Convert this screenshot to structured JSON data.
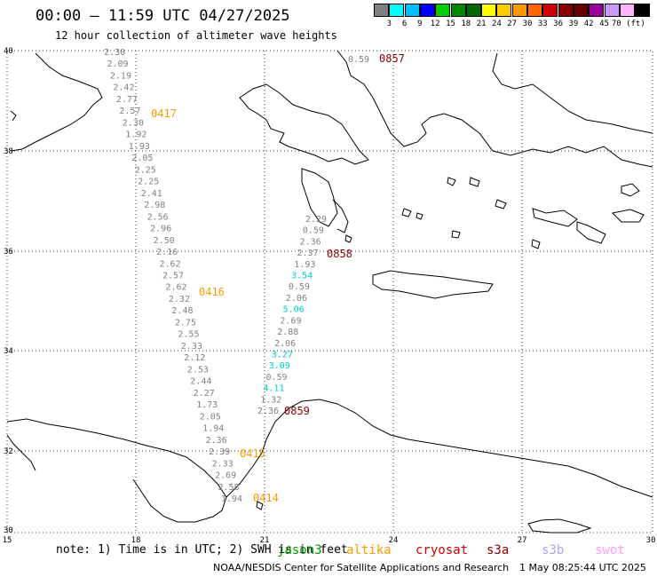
{
  "header": {
    "title": "00:00 – 11:59 UTC 04/27/2025",
    "subtitle": "12 hour collection of altimeter wave heights"
  },
  "colorbar": {
    "boxes": [
      "#808080",
      "#00ffff",
      "#00bfff",
      "#0000ff",
      "#00cc00",
      "#008800",
      "#006600",
      "#ffff00",
      "#ffcc00",
      "#ff9900",
      "#ff6600",
      "#cc0000",
      "#880000",
      "#660000",
      "#990099",
      "#cc99ff",
      "#ffb3ff",
      "#000000"
    ],
    "labels": [
      "3",
      "6",
      "9",
      "12",
      "15",
      "18",
      "21",
      "24",
      "27",
      "30",
      "33",
      "36",
      "39",
      "42",
      "45",
      "70 (ft)"
    ]
  },
  "axes": {
    "lat_labels": [
      "40",
      "38",
      "36",
      "34",
      "32",
      "30"
    ],
    "lon_labels": [
      "15",
      "18",
      "21",
      "24",
      "27",
      "30"
    ]
  },
  "passes": [
    {
      "label": "0857",
      "color": "#880000"
    },
    {
      "label": "0417",
      "color": "#ff9900"
    },
    {
      "label": "0858",
      "color": "#880000"
    },
    {
      "label": "0416",
      "color": "#ff9900"
    },
    {
      "label": "0859",
      "color": "#880000"
    },
    {
      "label": "0415",
      "color": "#ff9900"
    },
    {
      "label": "0414",
      "color": "#ff9900"
    }
  ],
  "track_west": {
    "values": [
      "2.30",
      "2.09",
      "2.19",
      "2.42",
      "2.77",
      "2.57",
      "2.30",
      "1.92",
      "1.93",
      "2.05",
      "2.25",
      "2.25",
      "2.41",
      "2.98",
      "2.56",
      "2.96",
      "2.50",
      "2.16",
      "2.62",
      "2.57",
      "2.62",
      "2.32",
      "2.48",
      "2.75",
      "2.55",
      "2.33",
      "2.12",
      "2.53",
      "2.44",
      "2.27",
      "1.73",
      "2.05",
      "1.94",
      "2.36",
      "2.39",
      "2.33",
      "2.69",
      "2.58",
      "1.94"
    ],
    "colors": [
      "#808080"
    ]
  },
  "track_east": {
    "values": [
      "0.59",
      "2.29",
      "0.59",
      "2.36",
      "2.37",
      "1.93",
      "3.54",
      "0.59",
      "2.06",
      "5.06",
      "2.69",
      "2.88",
      "2.06",
      "3.27",
      "3.09",
      "0.59",
      "4.11",
      "1.32",
      "2.36"
    ],
    "highlight": [
      "3.54",
      "5.06",
      "3.27",
      "3.09",
      "4.11"
    ],
    "highlight_color": "#00cccc",
    "normal_color": "#808080"
  },
  "note": "note:  1) Time is in UTC; 2) SWH is in feet",
  "legend": [
    {
      "label": "jason3",
      "color": "#009900"
    },
    {
      "label": "altika",
      "color": "#ff9900"
    },
    {
      "label": "cryosat",
      "color": "#cc0000"
    },
    {
      "label": "s3a",
      "color": "#880000"
    },
    {
      "label": "s3b",
      "color": "#b3a3e6"
    },
    {
      "label": "swot",
      "color": "#ff99ff"
    }
  ],
  "footer": {
    "credit": "NOAA/NESDIS Center for Satellite Applications and Research",
    "timestamp": "1 May 08:25:44 UTC 2025"
  }
}
